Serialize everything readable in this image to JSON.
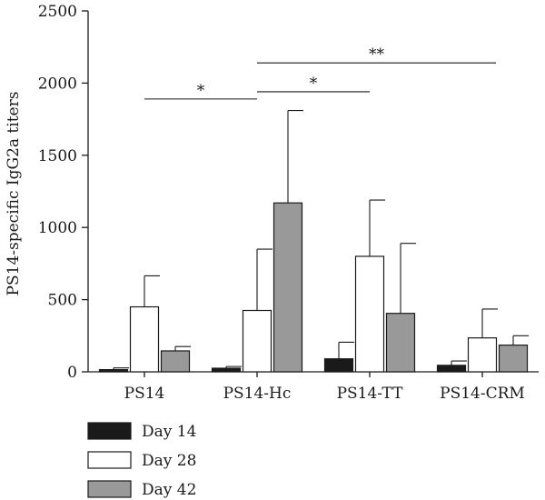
{
  "chart_data": {
    "type": "bar",
    "title": "",
    "xlabel": "",
    "ylabel": "PS14-specific IgG2a titers",
    "ylim": [
      0,
      2500
    ],
    "yticks": [
      0,
      500,
      1000,
      1500,
      2000,
      2500
    ],
    "categories": [
      "PS14",
      "PS14-Hc",
      "PS14-TT",
      "PS14-CRM"
    ],
    "series": [
      {
        "name": "Day 14",
        "color": "#1a1a1a",
        "values": [
          15,
          25,
          90,
          45
        ],
        "errors": [
          12,
          12,
          115,
          30
        ]
      },
      {
        "name": "Day 28",
        "color": "#ffffff",
        "values": [
          450,
          425,
          800,
          235
        ],
        "errors": [
          215,
          425,
          390,
          200
        ]
      },
      {
        "name": "Day 42",
        "color": "#999999",
        "values": [
          145,
          1170,
          405,
          185
        ],
        "errors": [
          30,
          640,
          485,
          65
        ]
      }
    ],
    "legend": {
      "position": "bottom-left"
    },
    "grid": false,
    "annotations": [
      {
        "text": "*",
        "from": "PS14",
        "to": "PS14-Hc",
        "y": 1890
      },
      {
        "text": "*",
        "from": "PS14-Hc",
        "to": "PS14-TT",
        "y": 1940
      },
      {
        "text": "**",
        "from": "PS14-Hc",
        "to": "PS14-CRM",
        "y": 2140
      }
    ]
  }
}
